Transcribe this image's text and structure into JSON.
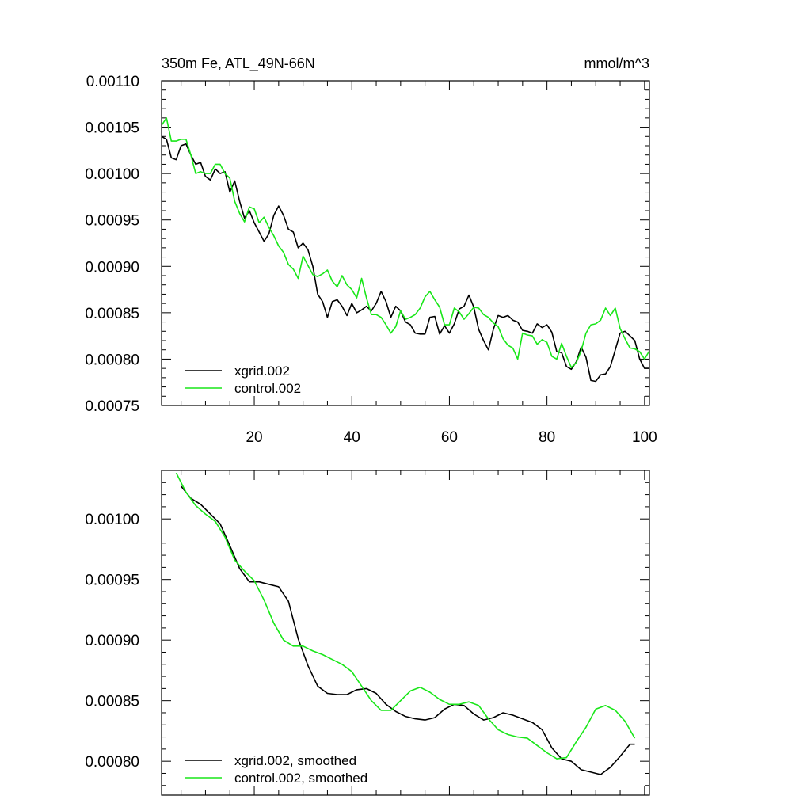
{
  "chart_data": [
    {
      "type": "line",
      "title": "350m Fe, ATL_49N-66N",
      "units": "mmol/m^3",
      "xlabel": "",
      "ylabel": "",
      "xlim": [
        1,
        101
      ],
      "ylim": [
        0.00075,
        0.0011
      ],
      "xticks": [
        "20",
        "40",
        "60",
        "80",
        "100"
      ],
      "yticks": [
        "0.00075",
        "0.00080",
        "0.00085",
        "0.00090",
        "0.00095",
        "0.00100",
        "0.00105",
        "0.00110"
      ],
      "legend_position": "bottom-left",
      "series": [
        {
          "name": "xgrid.002",
          "color": "#000000",
          "x": [
            1,
            2,
            3,
            4,
            5,
            6,
            7,
            8,
            9,
            10,
            11,
            12,
            13,
            14,
            15,
            16,
            17,
            18,
            19,
            20,
            21,
            22,
            23,
            24,
            25,
            26,
            27,
            28,
            29,
            30,
            31,
            32,
            33,
            34,
            35,
            36,
            37,
            38,
            39,
            40,
            41,
            42,
            43,
            44,
            45,
            46,
            47,
            48,
            49,
            50,
            51,
            52,
            53,
            54,
            55,
            56,
            57,
            58,
            59,
            60,
            61,
            62,
            63,
            64,
            65,
            66,
            67,
            68,
            69,
            70,
            71,
            72,
            73,
            74,
            75,
            76,
            77,
            78,
            79,
            80,
            81,
            82,
            83,
            84,
            85,
            86,
            87,
            88,
            89,
            90,
            91,
            92,
            93,
            94,
            95,
            96,
            97,
            98,
            99,
            100,
            101
          ],
          "values": [
            0.00104,
            0.001037,
            0.001017,
            0.001015,
            0.00103,
            0.001032,
            0.00102,
            0.00101,
            0.001012,
            0.000997,
            0.000993,
            0.001005,
            0.001,
            0.001002,
            0.00098,
            0.000992,
            0.00097,
            0.000952,
            0.00096,
            0.000947,
            0.000937,
            0.000927,
            0.000935,
            0.000955,
            0.000965,
            0.000955,
            0.00094,
            0.000937,
            0.00092,
            0.000925,
            0.000918,
            0.0009,
            0.00087,
            0.000862,
            0.000845,
            0.000862,
            0.000864,
            0.000857,
            0.000847,
            0.00086,
            0.00085,
            0.000853,
            0.000857,
            0.000852,
            0.00086,
            0.000873,
            0.000862,
            0.000845,
            0.000857,
            0.000852,
            0.00084,
            0.000837,
            0.000828,
            0.000827,
            0.000827,
            0.000845,
            0.000846,
            0.000827,
            0.000836,
            0.000828,
            0.000838,
            0.000854,
            0.000857,
            0.000869,
            0.000856,
            0.000832,
            0.00082,
            0.00081,
            0.000832,
            0.000847,
            0.000845,
            0.000847,
            0.000842,
            0.00084,
            0.000831,
            0.00083,
            0.000828,
            0.000838,
            0.000834,
            0.000837,
            0.000829,
            0.000808,
            0.000807,
            0.000792,
            0.000789,
            0.000797,
            0.000813,
            0.000802,
            0.000777,
            0.000776,
            0.000783,
            0.000784,
            0.000792,
            0.00081,
            0.000828,
            0.00083,
            0.000825,
            0.00082,
            0.0008,
            0.00079,
            0.00079
          ]
        },
        {
          "name": "control.002",
          "color": "#19e619",
          "x": [
            1,
            2,
            3,
            4,
            5,
            6,
            7,
            8,
            9,
            10,
            11,
            12,
            13,
            14,
            15,
            16,
            17,
            18,
            19,
            20,
            21,
            22,
            23,
            24,
            25,
            26,
            27,
            28,
            29,
            30,
            31,
            32,
            33,
            34,
            35,
            36,
            37,
            38,
            39,
            40,
            41,
            42,
            43,
            44,
            45,
            46,
            47,
            48,
            49,
            50,
            51,
            52,
            53,
            54,
            55,
            56,
            57,
            58,
            59,
            60,
            61,
            62,
            63,
            64,
            65,
            66,
            67,
            68,
            69,
            70,
            71,
            72,
            73,
            74,
            75,
            76,
            77,
            78,
            79,
            80,
            81,
            82,
            83,
            84,
            85,
            86,
            87,
            88,
            89,
            90,
            91,
            92,
            93,
            94,
            95,
            96,
            97,
            98,
            99,
            100,
            101
          ],
          "values": [
            0.001052,
            0.00106,
            0.001035,
            0.001035,
            0.001037,
            0.001037,
            0.00102,
            0.001,
            0.001002,
            0.001,
            0.001,
            0.00101,
            0.00101,
            0.001,
            0.000995,
            0.00097,
            0.000957,
            0.000948,
            0.000964,
            0.000962,
            0.000947,
            0.000953,
            0.000942,
            0.000933,
            0.000922,
            0.000915,
            0.000902,
            0.000897,
            0.000887,
            0.000911,
            0.000901,
            0.000891,
            0.000889,
            0.000892,
            0.000896,
            0.000884,
            0.000878,
            0.00089,
            0.00088,
            0.000875,
            0.000866,
            0.000887,
            0.000866,
            0.000848,
            0.000848,
            0.000845,
            0.000837,
            0.000828,
            0.000835,
            0.000852,
            0.000843,
            0.000845,
            0.000848,
            0.000855,
            0.000867,
            0.000873,
            0.000864,
            0.000856,
            0.000837,
            0.000837,
            0.000855,
            0.000851,
            0.000843,
            0.000849,
            0.000856,
            0.000855,
            0.000848,
            0.000845,
            0.000839,
            0.000835,
            0.000822,
            0.000815,
            0.000812,
            0.0008,
            0.000828,
            0.000826,
            0.000825,
            0.000816,
            0.000821,
            0.000818,
            0.000803,
            0.0008,
            0.000817,
            0.000803,
            0.000791,
            0.000796,
            0.000809,
            0.000828,
            0.000837,
            0.000838,
            0.000842,
            0.000855,
            0.000847,
            0.000855,
            0.000833,
            0.000822,
            0.000812,
            0.000811,
            0.000808,
            0.0008,
            0.000809
          ]
        }
      ]
    },
    {
      "type": "line",
      "title": "",
      "xlabel": "",
      "ylabel": "",
      "xlim": [
        1,
        101
      ],
      "ylim": [
        0.000772,
        0.00104
      ],
      "yticks": [
        "0.00080",
        "0.00085",
        "0.00090",
        "0.00095",
        "0.00100"
      ],
      "legend_position": "bottom-left",
      "series": [
        {
          "name": "xgrid.002, smoothed",
          "color": "#000000",
          "x": [
            5,
            7,
            9,
            11,
            13,
            15,
            17,
            19,
            21,
            23,
            25,
            27,
            29,
            31,
            33,
            35,
            37,
            39,
            41,
            43,
            45,
            47,
            49,
            51,
            53,
            55,
            57,
            59,
            61,
            63,
            65,
            67,
            69,
            71,
            73,
            75,
            77,
            79,
            81,
            83,
            85,
            87,
            89,
            91,
            93,
            95,
            97,
            98
          ],
          "values": [
            0.001027,
            0.001017,
            0.001012,
            0.001004,
            0.000996,
            0.000978,
            0.000959,
            0.000948,
            0.000948,
            0.000946,
            0.000944,
            0.000932,
            0.000901,
            0.000879,
            0.000862,
            0.000856,
            0.000855,
            0.000855,
            0.000859,
            0.00086,
            0.000856,
            0.000847,
            0.000841,
            0.000837,
            0.000835,
            0.000834,
            0.000836,
            0.000843,
            0.000847,
            0.000846,
            0.000839,
            0.000834,
            0.000836,
            0.00084,
            0.000838,
            0.000835,
            0.000832,
            0.000826,
            0.000811,
            0.000802,
            0.0008,
            0.000793,
            0.000791,
            0.000789,
            0.000795,
            0.000804,
            0.000814,
            0.000814
          ]
        },
        {
          "name": "control.002, smoothed",
          "color": "#19e619",
          "x": [
            4,
            6,
            8,
            10,
            12,
            14,
            16,
            18,
            20,
            22,
            24,
            26,
            28,
            30,
            32,
            34,
            36,
            38,
            40,
            42,
            44,
            46,
            48,
            50,
            52,
            54,
            56,
            58,
            60,
            62,
            64,
            66,
            68,
            70,
            72,
            74,
            76,
            78,
            80,
            82,
            84,
            86,
            88,
            90,
            92,
            94,
            96,
            98
          ],
          "values": [
            0.001038,
            0.001022,
            0.001011,
            0.001004,
            0.000998,
            0.000985,
            0.000966,
            0.000957,
            0.000949,
            0.000933,
            0.000914,
            0.0009,
            0.000895,
            0.000895,
            0.000891,
            0.000888,
            0.000884,
            0.00088,
            0.000874,
            0.000862,
            0.00085,
            0.000842,
            0.000842,
            0.00085,
            0.000858,
            0.000861,
            0.000857,
            0.000851,
            0.000847,
            0.000847,
            0.000849,
            0.000846,
            0.000835,
            0.000826,
            0.000822,
            0.00082,
            0.000819,
            0.000813,
            0.000807,
            0.000802,
            0.000803,
            0.000816,
            0.000828,
            0.000843,
            0.000846,
            0.000842,
            0.000833,
            0.000819
          ]
        }
      ]
    }
  ]
}
